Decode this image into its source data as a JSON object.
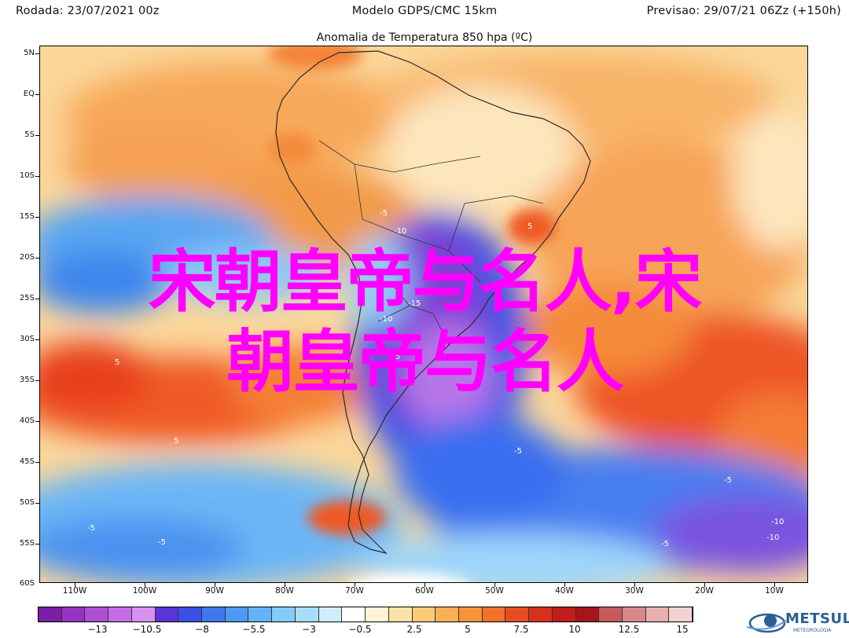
{
  "header": {
    "left": "Rodada: 23/07/2021 00z",
    "center": "Modelo GDPS/CMC 15km",
    "right": "Previsao: 29/07/21 06Zz (+150h)"
  },
  "subtitle": "Anomalia de Temperatura 850 hpa (ºC)",
  "lat_labels": [
    "5N",
    "EQ",
    "5S",
    "10S",
    "15S",
    "20S",
    "25S",
    "30S",
    "35S",
    "40S",
    "45S",
    "50S",
    "55S",
    "60S"
  ],
  "lon_labels": [
    "110W",
    "100W",
    "90W",
    "80W",
    "70W",
    "60W",
    "50W",
    "40W",
    "30W",
    "20W",
    "10W"
  ],
  "contour_labels": [
    "-5",
    "-10",
    "-15",
    "-10",
    "-5",
    "-5",
    "-5",
    "5",
    "5",
    "-5",
    "-5",
    "-5",
    "-10",
    "-10",
    "5"
  ],
  "overlay_text": {
    "line1": "宋朝皇帝与名人,宋",
    "line2": "朝皇帝与名人"
  },
  "colorbar": {
    "colors": [
      "#7a1fa8",
      "#9433c2",
      "#ac4fd6",
      "#c46ee6",
      "#d690f0",
      "#5a34d8",
      "#3b4fe6",
      "#3d78f0",
      "#4d99f5",
      "#61b4f8",
      "#83ccfa",
      "#a8def9",
      "#cfeefb",
      "#ffffff",
      "#fff3d6",
      "#fde3a6",
      "#fbcb7a",
      "#f9b055",
      "#f7933a",
      "#f2712b",
      "#e84d22",
      "#d8301d",
      "#c11d1b",
      "#a8141c",
      "#c45a5a",
      "#d98888",
      "#e8b0b0",
      "#f4d2d2"
    ],
    "labels": [
      "−13",
      "−10.5",
      "−8",
      "−5.5",
      "−3",
      "−0.5",
      "2.5",
      "5",
      "7.5",
      "10",
      "12.5",
      "15"
    ]
  },
  "logo": {
    "word": "METSUL",
    "sub": "METEOROLOGIA"
  }
}
